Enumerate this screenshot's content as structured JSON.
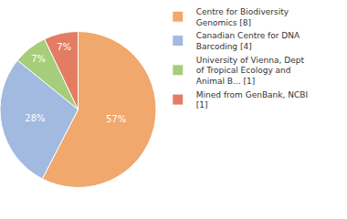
{
  "chart_data": {
    "type": "pie",
    "categories": [
      "Centre for Biodiversity Genomics [8]",
      "Canadian Centre for DNA Barcoding [4]",
      "University of Vienna, Dept of Tropical Ecology and Animal B... [1]",
      "Mined from GenBank, NCBI [1]"
    ],
    "values": [
      57,
      28,
      7,
      7
    ],
    "value_labels": [
      "57%",
      "28%",
      "7%",
      "7%"
    ],
    "colors": [
      "#f0a86c",
      "#a2b9e0",
      "#a6cd7a",
      "#e27d63"
    ],
    "data_labels": true,
    "legend": "right"
  }
}
